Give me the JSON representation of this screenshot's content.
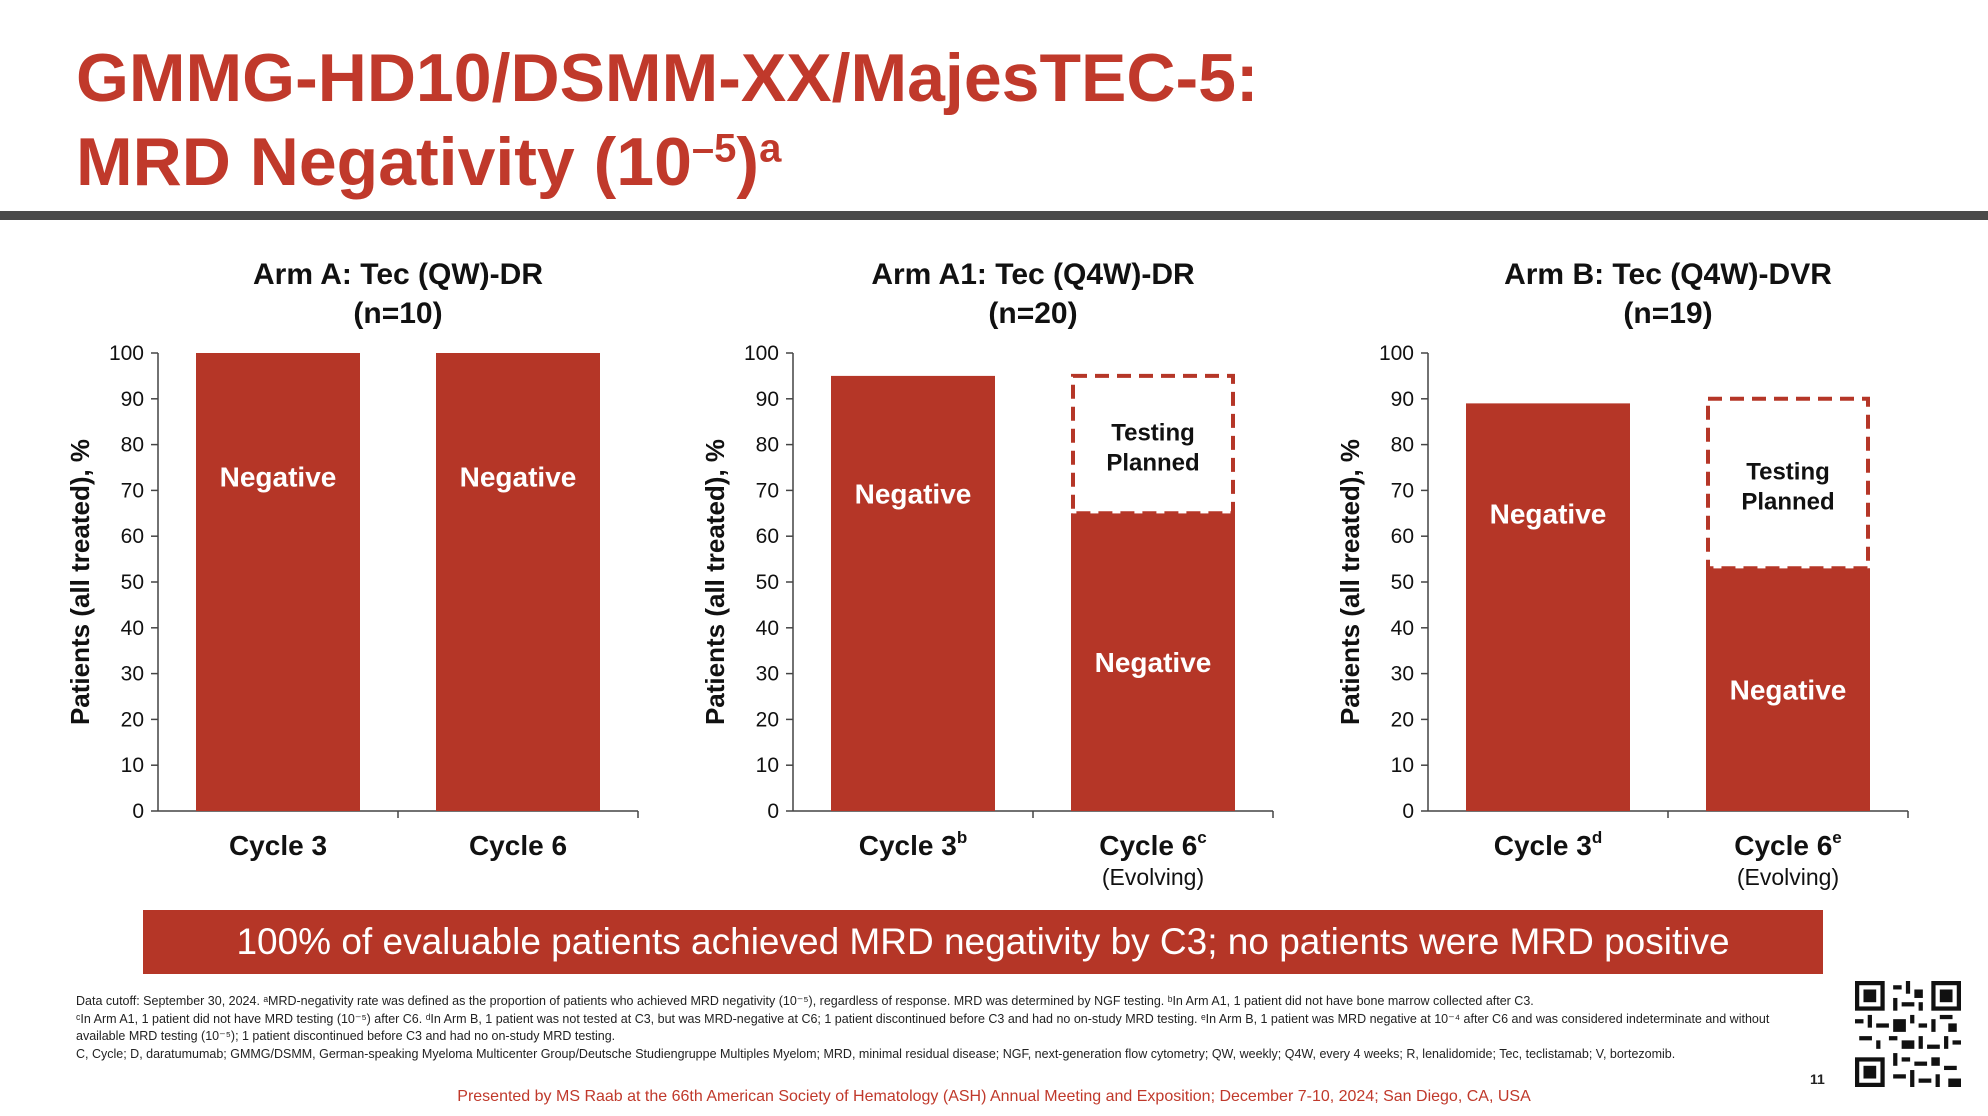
{
  "header": {
    "title_line1": "GMMG-HD10/DSMM-XX/MajesTEC-5:",
    "title_line2_main": "MRD Negativity (10",
    "title_line2_exp": "–5",
    "title_line2_close": ")",
    "title_line2_sup": "a"
  },
  "chart_data": [
    {
      "type": "bar",
      "stacked": true,
      "title": "Arm A: Tec (QW)-DR",
      "subtitle": "(n=10)",
      "ylabel": "Patients (all treated), %",
      "ylim": [
        0,
        100
      ],
      "yticks": [
        0,
        10,
        20,
        30,
        40,
        50,
        60,
        70,
        80,
        90,
        100
      ],
      "categories": [
        {
          "label": "Cycle 3",
          "sup": "",
          "sub": ""
        },
        {
          "label": "Cycle 6",
          "sup": "",
          "sub": ""
        }
      ],
      "series": [
        {
          "name": "Negative",
          "values": [
            100,
            100
          ]
        },
        {
          "name": "Testing Planned",
          "values": [
            0,
            0
          ]
        }
      ]
    },
    {
      "type": "bar",
      "stacked": true,
      "title": "Arm A1: Tec (Q4W)-DR",
      "subtitle": "(n=20)",
      "ylabel": "Patients (all treated), %",
      "ylim": [
        0,
        100
      ],
      "yticks": [
        0,
        10,
        20,
        30,
        40,
        50,
        60,
        70,
        80,
        90,
        100
      ],
      "categories": [
        {
          "label": "Cycle 3",
          "sup": "b",
          "sub": ""
        },
        {
          "label": "Cycle 6",
          "sup": "c",
          "sub": "(Evolving)"
        }
      ],
      "series": [
        {
          "name": "Negative",
          "values": [
            95,
            65
          ]
        },
        {
          "name": "Testing Planned",
          "values": [
            0,
            30
          ]
        }
      ]
    },
    {
      "type": "bar",
      "stacked": true,
      "title": "Arm B: Tec (Q4W)-DVR",
      "subtitle": "(n=19)",
      "ylabel": "Patients (all treated), %",
      "ylim": [
        0,
        100
      ],
      "yticks": [
        0,
        10,
        20,
        30,
        40,
        50,
        60,
        70,
        80,
        90,
        100
      ],
      "categories": [
        {
          "label": "Cycle 3",
          "sup": "d",
          "sub": ""
        },
        {
          "label": "Cycle 6",
          "sup": "e",
          "sub": "(Evolving)"
        }
      ],
      "series": [
        {
          "name": "Negative",
          "values": [
            89,
            53
          ]
        },
        {
          "name": "Testing Planned",
          "values": [
            0,
            37
          ]
        }
      ]
    }
  ],
  "colors": {
    "bar": "#b53627",
    "title": "#c0392b",
    "rule": "#4a4a4a"
  },
  "banner": "100% of evaluable patients achieved MRD negativity by C3; no patients were MRD positive",
  "footnotes": {
    "line1": "Data cutoff: September 30, 2024. ᵃMRD-negativity rate was defined as the proportion of patients who achieved MRD negativity (10⁻⁵), regardless of response. MRD was determined by NGF testing. ᵇIn Arm A1, 1 patient did not have bone marrow collected after C3.",
    "line2": "ᶜIn Arm A1, 1 patient did not have MRD testing (10⁻⁵) after C6. ᵈIn Arm B, 1 patient was not tested at C3, but was MRD-negative at C6; 1 patient discontinued before C3 and had no on-study MRD testing. ᵉIn Arm B, 1 patient was MRD negative at 10⁻⁴ after C6 and was considered indeterminate and without available MRD testing (10⁻⁵); 1 patient discontinued before C3 and had no on-study MRD testing.",
    "line3": "C, Cycle; D, daratumumab; GMMG/DSMM, German-speaking Myeloma Multicenter Group/Deutsche Studiengruppe Multiples Myelom; MRD, minimal residual disease; NGF, next-generation flow cytometry; QW, weekly; Q4W, every 4 weeks; R, lenalidomide; Tec, teclistamab; V, bortezomib."
  },
  "presented_by": "Presented by MS Raab at the 66th American Society of Hematology (ASH) Annual Meeting and Exposition; December 7-10, 2024; San Diego, CA, USA",
  "page_number": "11"
}
